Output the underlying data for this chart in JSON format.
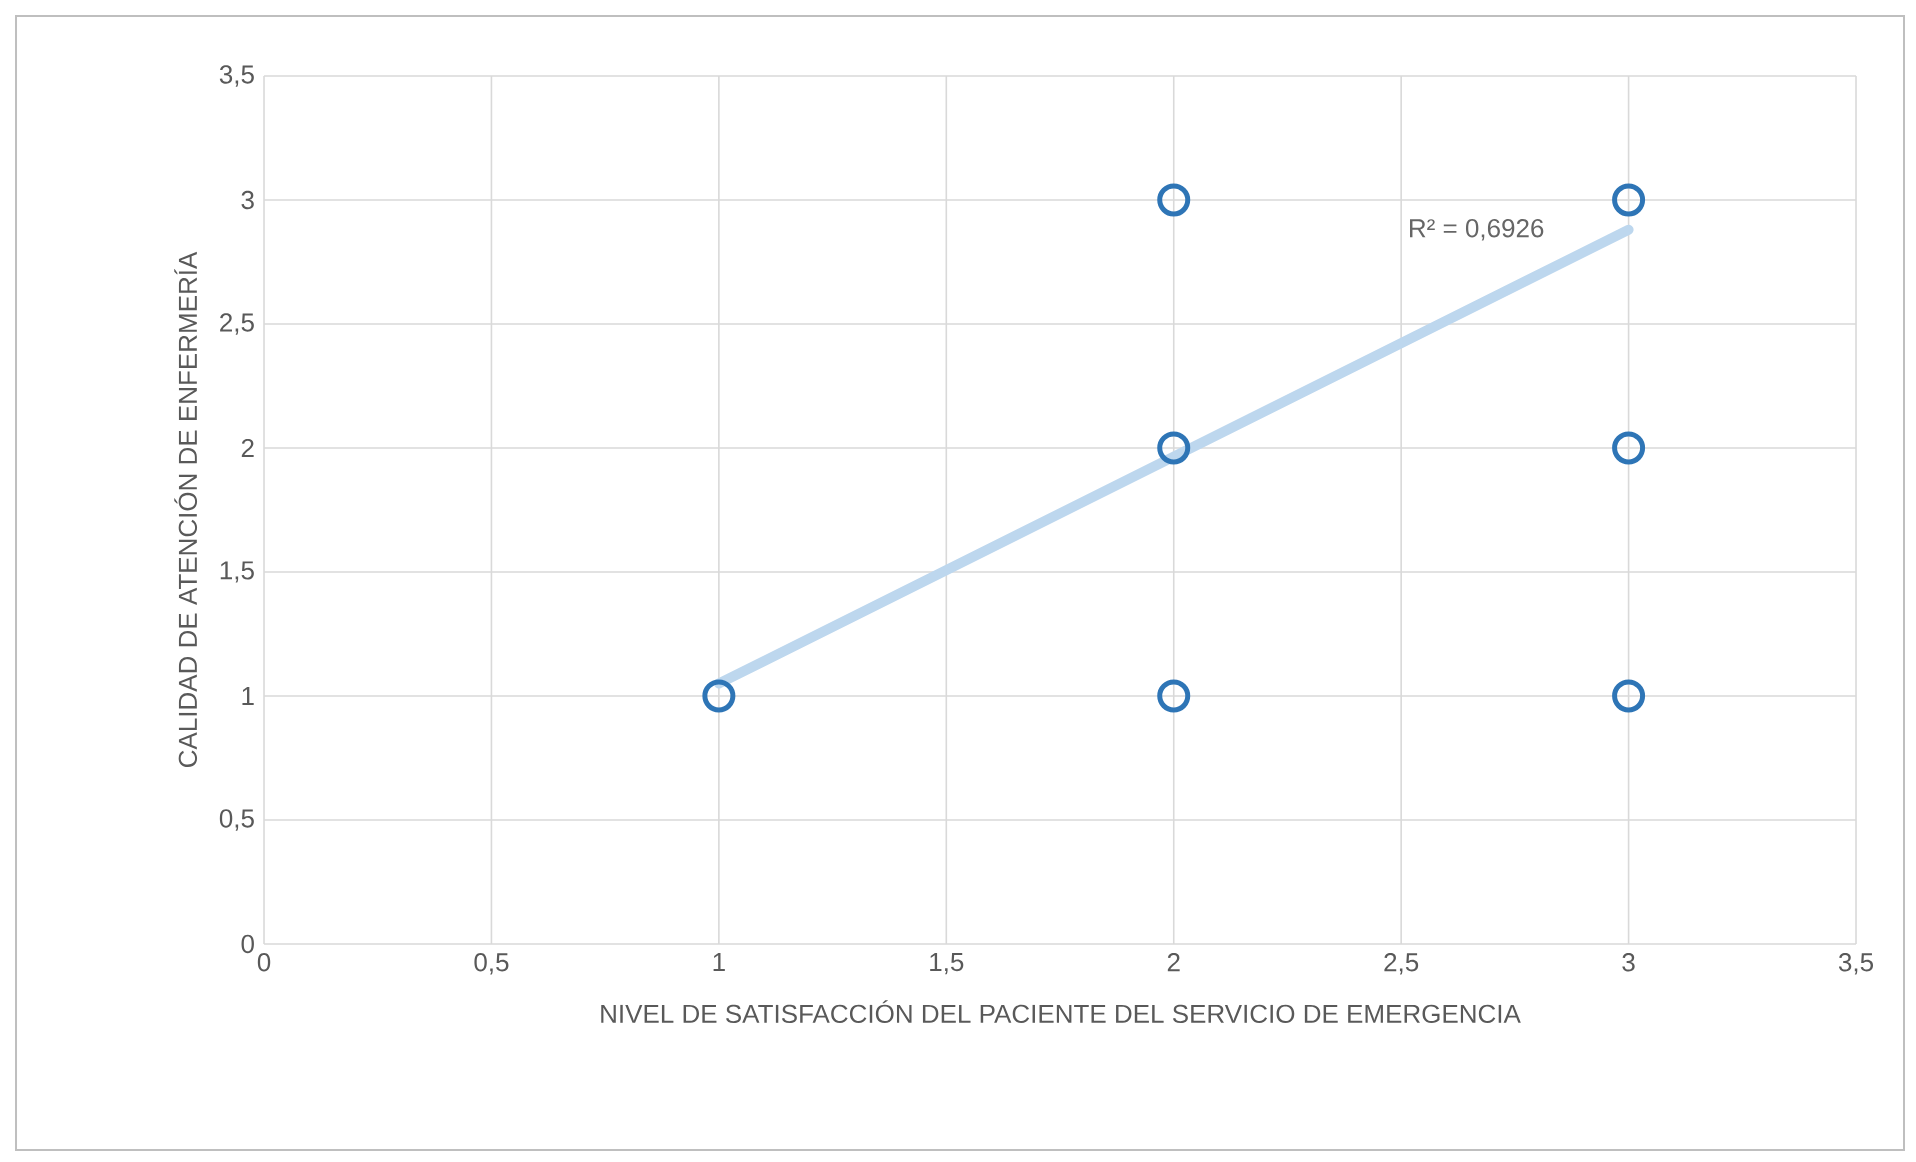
{
  "chart_data": {
    "type": "scatter",
    "xlabel": "NIVEL DE SATISFACCIÓN DEL PACIENTE DEL SERVICIO DE EMERGENCIA",
    "ylabel": "CALIDAD DE ATENCIÓN DE ENFERMERÍA",
    "series": [
      {
        "color": "#2e75b6",
        "marker": "circle",
        "x": [
          1,
          2,
          2,
          2,
          3,
          3,
          3
        ],
        "values": [
          1,
          3,
          2,
          1,
          3,
          2,
          1
        ]
      },
      {
        "type": "line",
        "color": "#bdd7ee",
        "marker": "none",
        "x": [
          1,
          3
        ],
        "values": [
          1.05,
          2.88
        ]
      }
    ],
    "annotations": [
      "R² = 0,6926"
    ],
    "xlim": [
      0,
      3.5
    ],
    "ylim": [
      0,
      3.5
    ],
    "xticks": [
      0,
      {
        "value": 0.5,
        "label": "0,5"
      },
      1,
      {
        "value": 1.5,
        "label": "1,5"
      },
      2,
      {
        "value": 2.5,
        "label": "2,5"
      },
      3,
      {
        "value": 3.5,
        "label": "3,5"
      }
    ],
    "yticks": [
      0,
      {
        "value": 0.5,
        "label": "0,5"
      },
      1,
      {
        "value": 1.5,
        "label": "1,5"
      },
      2,
      {
        "value": 2.5,
        "label": "2,5"
      },
      3,
      {
        "value": 3.5,
        "label": "3,5"
      }
    ],
    "grid": true
  }
}
